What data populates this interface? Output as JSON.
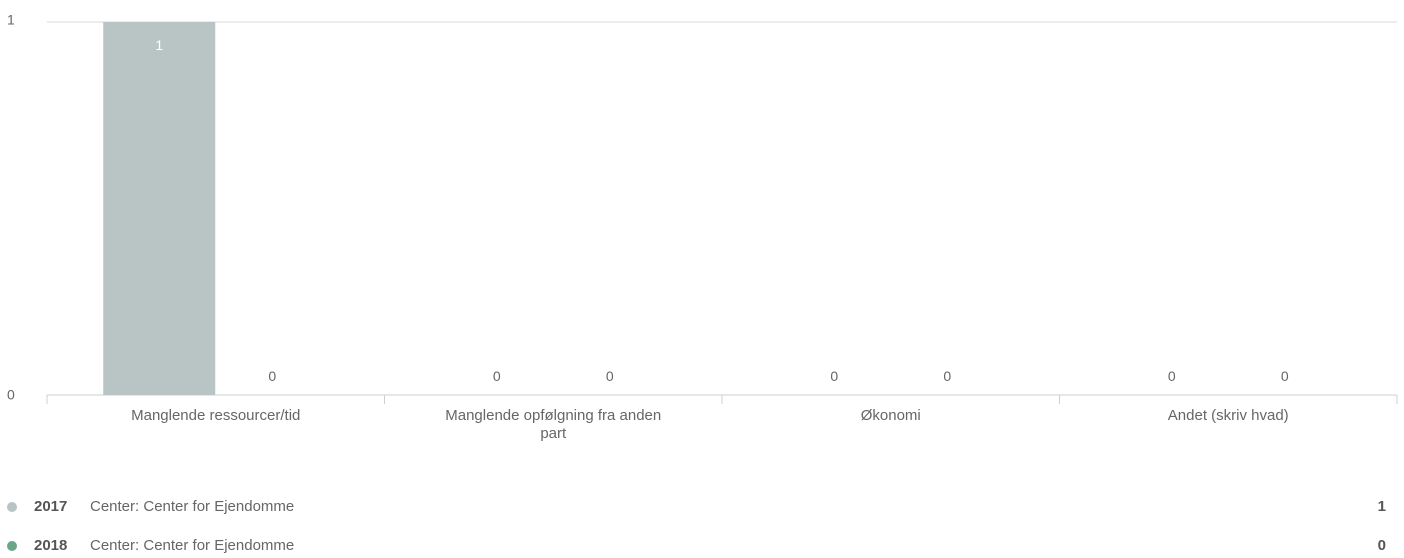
{
  "chart_data": {
    "type": "bar",
    "categories": [
      "Manglende ressourcer/tid",
      "Manglende opfølgning fra anden part",
      "Økonomi",
      "Andet (skriv hvad)"
    ],
    "series": [
      {
        "name": "2017 Center: Center for Ejendomme",
        "values": [
          1,
          0,
          0,
          0
        ],
        "color": "#b9c4c5"
      },
      {
        "name": "2018 Center: Center for Ejendomme",
        "values": [
          0,
          0,
          0,
          0
        ],
        "color": "#6aa789"
      }
    ],
    "ylim": [
      0,
      1
    ],
    "yticks": [
      0,
      1
    ],
    "grid": true,
    "legend_position": "bottom"
  },
  "legend": {
    "items": [
      {
        "year": "2017",
        "label": "Center: Center for Ejendomme",
        "total": "1",
        "color": "#b9c4c5"
      },
      {
        "year": "2018",
        "label": "Center: Center for Ejendomme",
        "total": "0",
        "color": "#6aa789"
      }
    ]
  }
}
